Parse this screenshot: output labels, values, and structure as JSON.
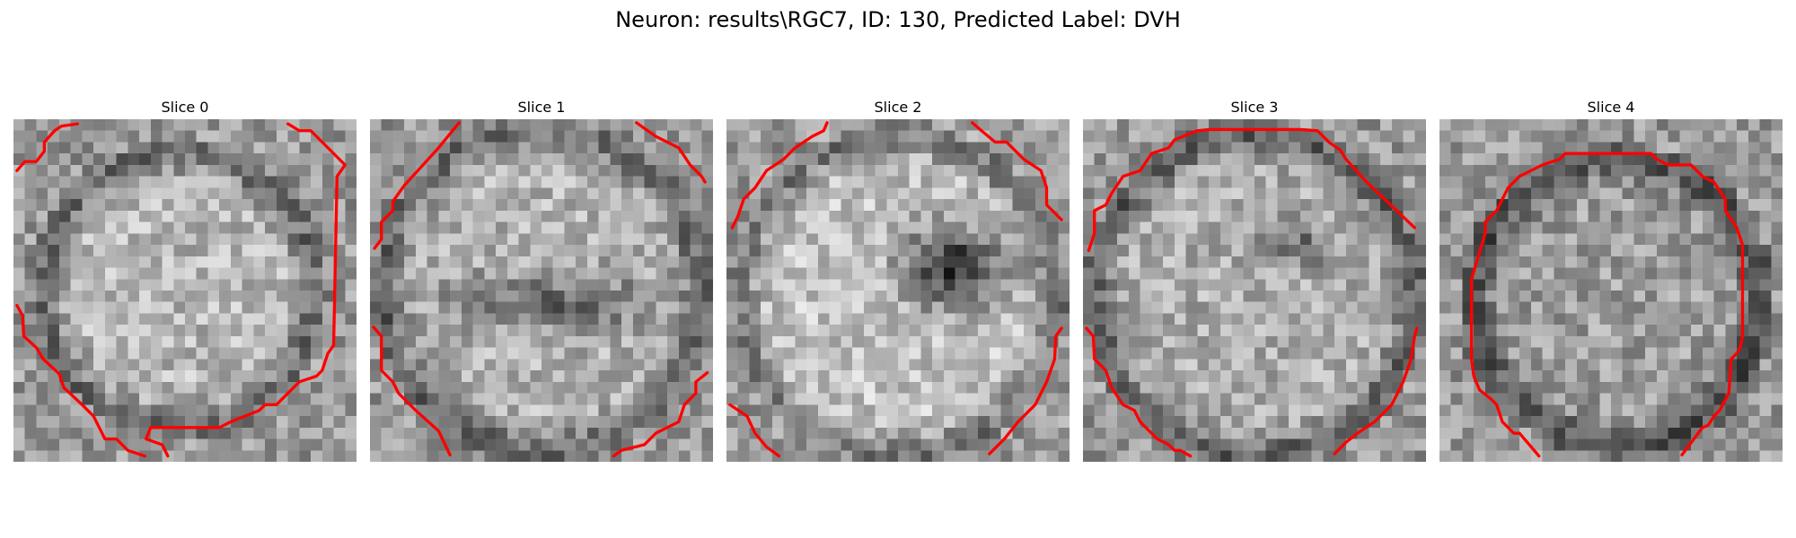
{
  "figure": {
    "title": "Neuron: results\\RGC7, ID: 130, Predicted Label: DVH",
    "contour_color": "#ff0000"
  },
  "slices": [
    {
      "title": "Slice 0",
      "image": "grayscale-microscopy-patch",
      "overlay": "red-contour-outline"
    },
    {
      "title": "Slice 1",
      "image": "grayscale-microscopy-patch",
      "overlay": "red-contour-outline"
    },
    {
      "title": "Slice 2",
      "image": "grayscale-microscopy-patch",
      "overlay": "red-contour-outline"
    },
    {
      "title": "Slice 3",
      "image": "grayscale-microscopy-patch",
      "overlay": "red-contour-outline"
    },
    {
      "title": "Slice 4",
      "image": "grayscale-microscopy-patch",
      "overlay": "red-contour-outline"
    }
  ]
}
